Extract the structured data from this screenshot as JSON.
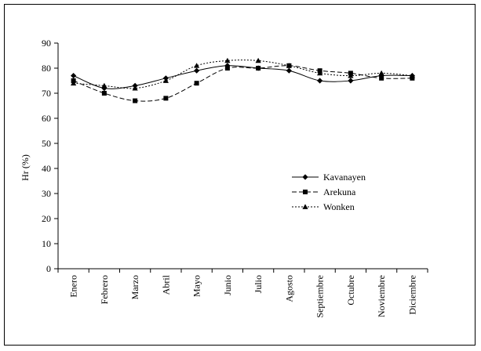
{
  "chart_data": {
    "type": "line",
    "title": "",
    "xlabel": "",
    "ylabel": "Hr (%)",
    "ylim": [
      0,
      90
    ],
    "yticks": [
      0,
      10,
      20,
      30,
      40,
      50,
      60,
      70,
      80,
      90
    ],
    "grid": false,
    "legend_position": "right",
    "categories": [
      "Enero",
      "Febrero",
      "Marzo",
      "Abril",
      "Mayo",
      "Junio",
      "Julio",
      "Agosto",
      "Septiembre",
      "Octubre",
      "Noviembre",
      "Diciembre"
    ],
    "series": [
      {
        "name": "Kavanayen",
        "marker": "diamond",
        "dash": "solid",
        "values": [
          77,
          72,
          73,
          76,
          79,
          81,
          80,
          79,
          75,
          75,
          77,
          77
        ]
      },
      {
        "name": "Arekuna",
        "marker": "square",
        "dash": "dashed",
        "values": [
          75,
          70,
          67,
          68,
          74,
          80,
          80,
          81,
          79,
          78,
          76,
          76
        ]
      },
      {
        "name": "Wonken",
        "marker": "triangle",
        "dash": "dotted",
        "values": [
          74,
          73,
          72,
          75,
          81,
          83,
          83,
          81,
          78,
          77,
          78,
          77
        ]
      }
    ]
  }
}
